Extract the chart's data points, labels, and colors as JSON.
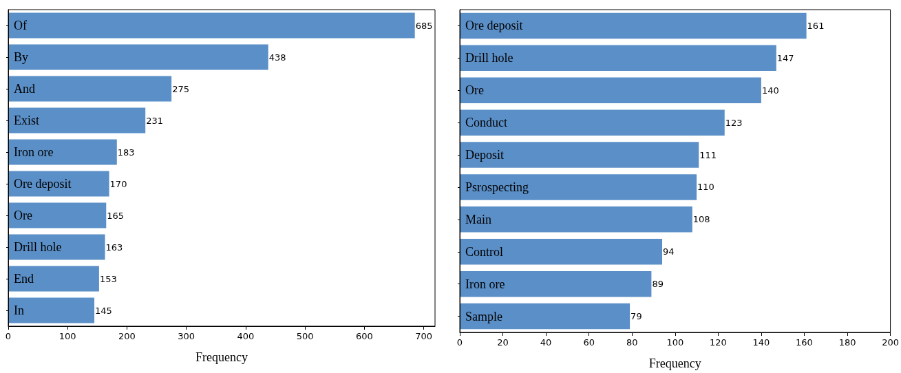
{
  "chart_data": [
    {
      "type": "bar",
      "orientation": "horizontal",
      "xlabel": "Frequency",
      "categories": [
        "Of",
        "By",
        "And",
        "Exist",
        "Iron ore",
        "Ore deposit",
        "Ore",
        "Drill hole",
        "End",
        "In"
      ],
      "values": [
        685,
        438,
        275,
        231,
        183,
        170,
        165,
        163,
        153,
        145
      ],
      "color": "#5b8fc7",
      "xlim": [
        0,
        719
      ],
      "xticks": [
        0,
        100,
        200,
        300,
        400,
        500,
        600,
        700
      ],
      "data_labels": true
    },
    {
      "type": "bar",
      "orientation": "horizontal",
      "xlabel": "Frequency",
      "categories": [
        "Ore deposit",
        "Drill hole",
        "Ore",
        "Conduct",
        "Deposit",
        "Psrospecting",
        "Main",
        "Control",
        "Iron ore",
        "Sample"
      ],
      "values": [
        161,
        147,
        140,
        123,
        111,
        110,
        108,
        94,
        89,
        79
      ],
      "color": "#5b8fc7",
      "xlim": [
        0,
        200
      ],
      "xticks": [
        0,
        20,
        40,
        60,
        80,
        100,
        120,
        140,
        160,
        180,
        200
      ],
      "data_labels": true
    }
  ]
}
